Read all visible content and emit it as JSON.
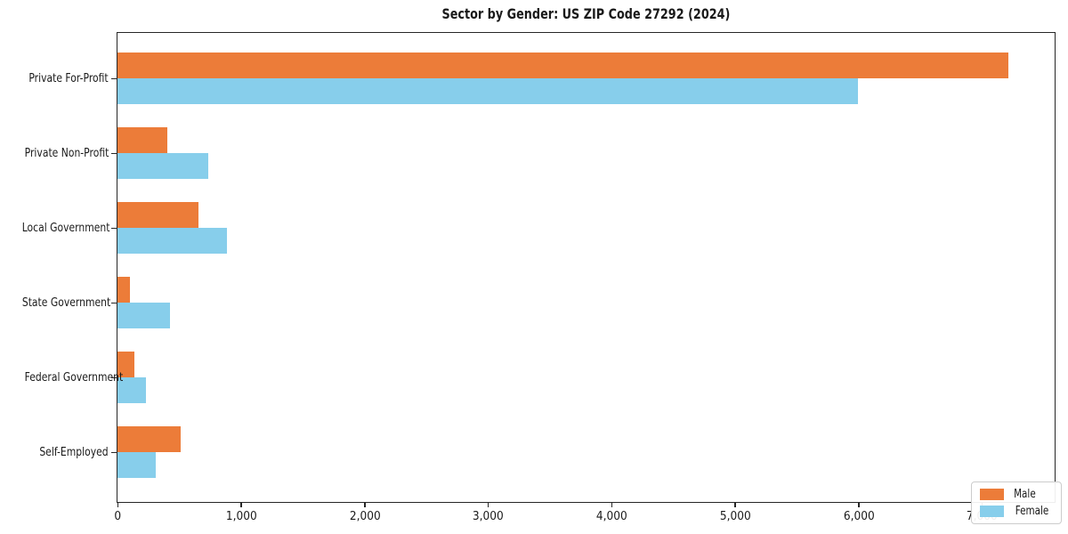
{
  "chart_data": {
    "type": "bar",
    "orientation": "horizontal",
    "title": "Sector by Gender: US ZIP Code 27292 (2024)",
    "categories": [
      "Private For-Profit",
      "Private Non-Profit",
      "Local Government",
      "State Government",
      "Federal Government",
      "Self-Employed"
    ],
    "series": [
      {
        "name": "Male",
        "color": "#ec7c39",
        "values": [
          7215,
          405,
          655,
          100,
          135,
          510
        ]
      },
      {
        "name": "Female",
        "color": "#87ceeb",
        "values": [
          6000,
          735,
          885,
          425,
          230,
          310
        ]
      }
    ],
    "xlim": [
      0,
      7582
    ],
    "xticks": [
      0,
      1000,
      2000,
      3000,
      4000,
      5000,
      6000,
      7000
    ],
    "xtick_labels": [
      "0",
      "1,000",
      "2,000",
      "3,000",
      "4,000",
      "5,000",
      "6,000",
      "7,000"
    ],
    "grid": false,
    "legend": {
      "position": "lower right"
    }
  },
  "colors": {
    "axis": "#262626",
    "text": "#1a1a1a",
    "legend_border": "#cccccc",
    "background": "#ffffff"
  }
}
